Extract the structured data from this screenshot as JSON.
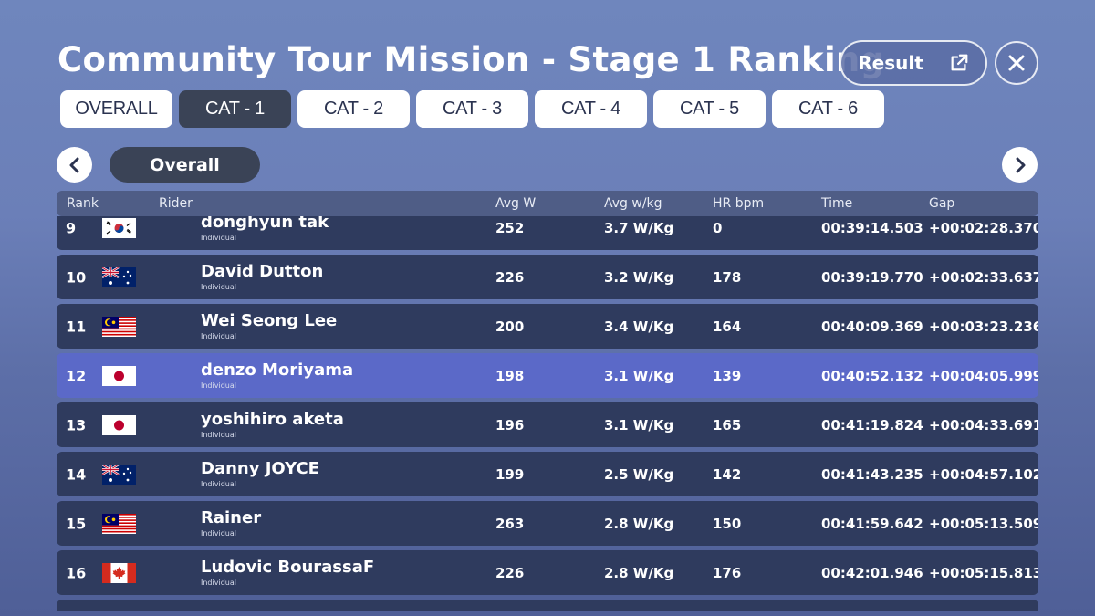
{
  "page": {
    "title": "Community Tour Mission - Stage 1 Ranking",
    "result_label": "Result"
  },
  "tabs": [
    {
      "label": "OVERALL",
      "active": false
    },
    {
      "label": "CAT - 1",
      "active": true
    },
    {
      "label": "CAT - 2",
      "active": false
    },
    {
      "label": "CAT - 3",
      "active": false
    },
    {
      "label": "CAT - 4",
      "active": false
    },
    {
      "label": "CAT - 5",
      "active": false
    },
    {
      "label": "CAT - 6",
      "active": false
    }
  ],
  "filter": {
    "label": "Overall"
  },
  "table": {
    "headers": {
      "rank": "Rank",
      "rider": "Rider",
      "avg_w": "Avg W",
      "avg_wkg": "Avg w/kg",
      "hr": "HR bpm",
      "time": "Time",
      "gap": "Gap"
    },
    "rows": [
      {
        "rank": "9",
        "flag": "KR",
        "name": "donghyun tak",
        "team": "Individual",
        "avg_w": "252",
        "avg_wkg": "3.7 W/Kg",
        "hr": "0",
        "time": "00:39:14.503",
        "gap": "+00:02:28.370",
        "highlight": false
      },
      {
        "rank": "10",
        "flag": "AU",
        "name": "David Dutton",
        "team": "Individual",
        "avg_w": "226",
        "avg_wkg": "3.2 W/Kg",
        "hr": "178",
        "time": "00:39:19.770",
        "gap": "+00:02:33.637",
        "highlight": false
      },
      {
        "rank": "11",
        "flag": "MY",
        "name": "Wei Seong Lee",
        "team": "Individual",
        "avg_w": "200",
        "avg_wkg": "3.4 W/Kg",
        "hr": "164",
        "time": "00:40:09.369",
        "gap": "+00:03:23.236",
        "highlight": false
      },
      {
        "rank": "12",
        "flag": "JP",
        "name": "denzo Moriyama",
        "team": "Individual",
        "avg_w": "198",
        "avg_wkg": "3.1 W/Kg",
        "hr": "139",
        "time": "00:40:52.132",
        "gap": "+00:04:05.999",
        "highlight": true
      },
      {
        "rank": "13",
        "flag": "JP",
        "name": "yoshihiro aketa",
        "team": "Individual",
        "avg_w": "196",
        "avg_wkg": "3.1 W/Kg",
        "hr": "165",
        "time": "00:41:19.824",
        "gap": "+00:04:33.691",
        "highlight": false
      },
      {
        "rank": "14",
        "flag": "AU",
        "name": "Danny JOYCE",
        "team": "Individual",
        "avg_w": "199",
        "avg_wkg": "2.5 W/Kg",
        "hr": "142",
        "time": "00:41:43.235",
        "gap": "+00:04:57.102",
        "highlight": false
      },
      {
        "rank": "15",
        "flag": "MY",
        "name": "Rainer",
        "team": "Individual",
        "avg_w": "263",
        "avg_wkg": "2.8 W/Kg",
        "hr": "150",
        "time": "00:41:59.642",
        "gap": "+00:05:13.509",
        "highlight": false
      },
      {
        "rank": "16",
        "flag": "CA",
        "name": "Ludovic BourassaF",
        "team": "Individual",
        "avg_w": "226",
        "avg_wkg": "2.8 W/Kg",
        "hr": "176",
        "time": "00:42:01.946",
        "gap": "+00:05:15.813",
        "highlight": false
      },
      {
        "rank": "",
        "flag": "",
        "name": "",
        "team": "",
        "avg_w": "",
        "avg_wkg": "",
        "hr": "",
        "time": "",
        "gap": "",
        "highlight": false
      }
    ]
  },
  "colors": {
    "row_bg": "#2f3b5e",
    "row_highlight": "#5b69c8",
    "tab_active": "#3a4356"
  }
}
